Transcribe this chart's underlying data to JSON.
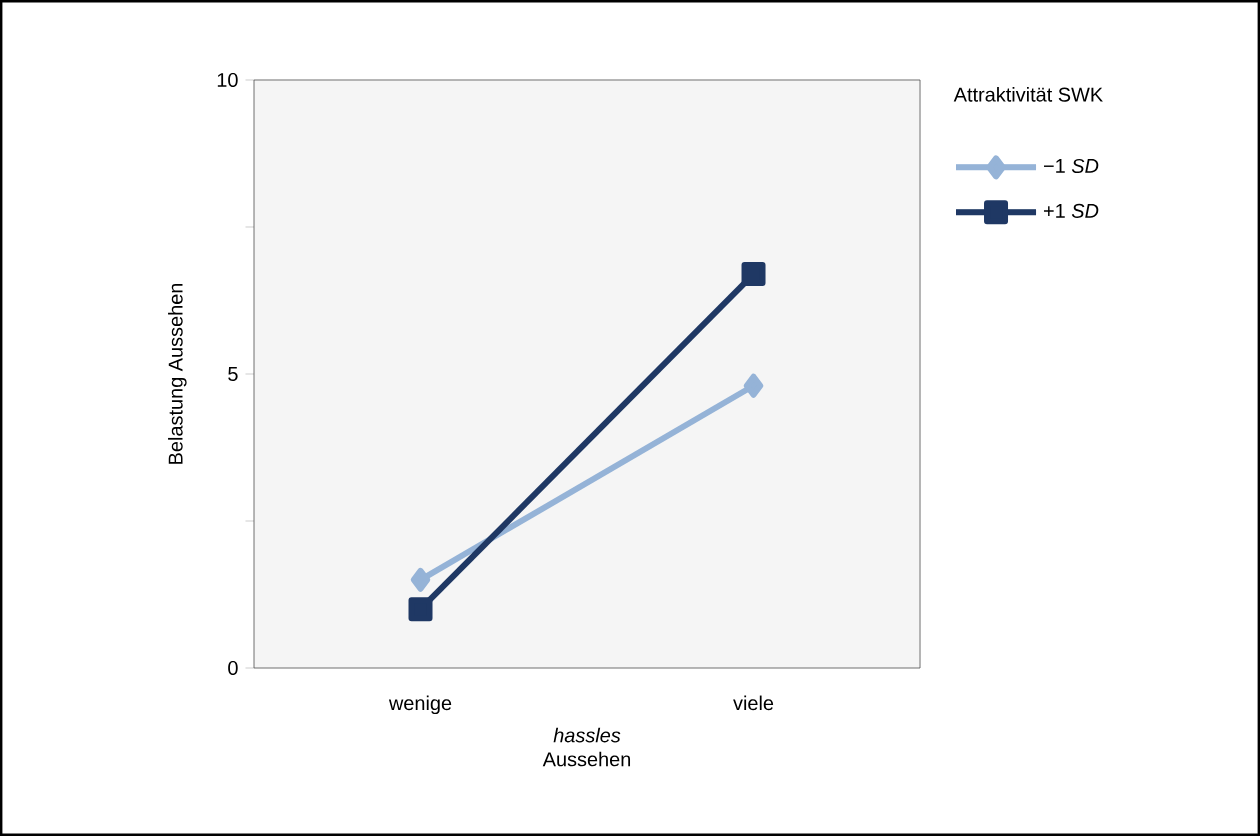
{
  "chart_data": {
    "type": "line",
    "xlabel": "*hassles* Aussehen",
    "ylabel": "Belastung  Aussehen",
    "legend_title": "Attraktivität SWK",
    "categories": [
      "wenige",
      "viele"
    ],
    "series": [
      {
        "name": "−1 *SD*",
        "color": "#95b3d7",
        "marker": "diamond",
        "values": [
          1.5,
          4.8
        ]
      },
      {
        "name": "+1 *SD*",
        "color": "#1f3864",
        "marker": "square",
        "values": [
          1.0,
          6.7
        ]
      }
    ],
    "ylim": [
      0,
      10
    ],
    "yticks": [
      0,
      {
        "value": 2.5,
        "label": null
      },
      5,
      {
        "value": 7.5,
        "label": null
      },
      10
    ],
    "legend": "right",
    "line_style": "solid"
  }
}
